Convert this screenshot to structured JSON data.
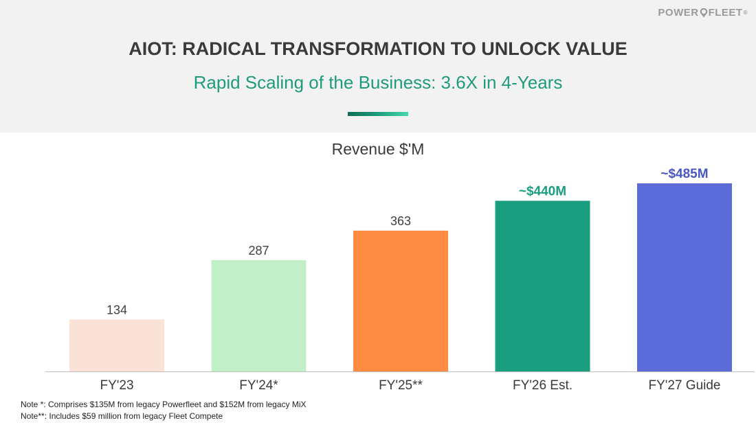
{
  "header": {
    "logo_text_left": "POWER",
    "logo_text_right": "FLEET",
    "logo_mark": "®",
    "title": "AIOT: RADICAL TRANSFORMATION TO UNLOCK VALUE",
    "subtitle": "Rapid Scaling of the Business: 3.6X in 4-Years"
  },
  "colors": {
    "accent": "#1f9b7c",
    "header_bg": "#f2f2f2"
  },
  "chart_data": {
    "type": "bar",
    "title": "Revenue $'M",
    "categories": [
      "FY'23",
      "FY'24*",
      "FY'25**",
      "FY'26 Est.",
      "FY'27 Guide"
    ],
    "values": [
      134,
      287,
      363,
      440,
      485
    ],
    "data_labels": [
      "134",
      "287",
      "363",
      "~$440M",
      "~$485M"
    ],
    "bar_colors": [
      "#fbe2d6",
      "#c1f0c8",
      "#ff8c42",
      "#1a9e80",
      "#5b6bd8"
    ],
    "label_colors": [
      "#404040",
      "#404040",
      "#404040",
      "#1a9e80",
      "#4a56c6"
    ],
    "label_bold": [
      false,
      false,
      false,
      true,
      true
    ],
    "ylim": [
      0,
      485
    ],
    "grid": false,
    "legend": "none"
  },
  "notes": [
    "Note *: Comprises $135M from legacy Powerfleet and $152M from legacy MiX",
    "Note**: Includes $59 million from legacy Fleet Compete"
  ]
}
